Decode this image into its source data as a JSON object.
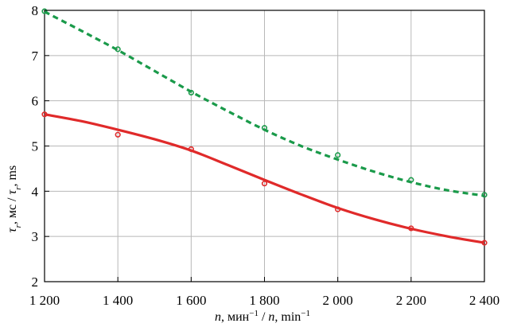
{
  "chart_data": {
    "type": "line",
    "xlabel": {
      "var": "n",
      "unit_ru": "мин",
      "sep": " / ",
      "unit_en": "min",
      "exp": "−1"
    },
    "ylabel": {
      "var": "τ",
      "sub": "r",
      "unit_ru": "мс",
      "sep": " / ",
      "unit_en": "ms"
    },
    "xlim": [
      1200,
      2400
    ],
    "ylim": [
      2,
      8
    ],
    "x_ticks": [
      1200,
      1400,
      1600,
      1800,
      2000,
      2200,
      2400
    ],
    "x_tick_labels": [
      "1 200",
      "1 400",
      "1 600",
      "1 800",
      "2 000",
      "2 200",
      "2 400"
    ],
    "y_ticks": [
      2,
      3,
      4,
      5,
      6,
      7,
      8
    ],
    "y_tick_labels": [
      "2",
      "3",
      "4",
      "5",
      "6",
      "7",
      "8"
    ],
    "grid": true,
    "series": [
      {
        "color": "#1a9a4a",
        "line_style": "dashed",
        "points": {
          "x": [
            1200,
            1400,
            1600,
            1800,
            2000,
            2200,
            2400
          ],
          "y": [
            7.98,
            7.14,
            6.18,
            5.4,
            4.8,
            4.25,
            3.92
          ]
        },
        "fit": {
          "x": [
            1200,
            1300,
            1400,
            1500,
            1600,
            1700,
            1800,
            1900,
            2000,
            2100,
            2200,
            2300,
            2400
          ],
          "y": [
            7.97,
            7.55,
            7.12,
            6.66,
            6.2,
            5.77,
            5.36,
            5.0,
            4.7,
            4.43,
            4.2,
            4.02,
            3.9
          ]
        }
      },
      {
        "color": "#e02a2a",
        "line_style": "solid",
        "points": {
          "x": [
            1200,
            1400,
            1600,
            1800,
            2000,
            2200,
            2400
          ],
          "y": [
            5.7,
            5.25,
            4.93,
            4.17,
            3.6,
            3.18,
            2.86
          ]
        },
        "fit": {
          "x": [
            1200,
            1300,
            1400,
            1500,
            1600,
            1700,
            1800,
            1900,
            2000,
            2100,
            2200,
            2300,
            2400
          ],
          "y": [
            5.7,
            5.55,
            5.36,
            5.15,
            4.9,
            4.58,
            4.25,
            3.93,
            3.63,
            3.38,
            3.17,
            3.0,
            2.86
          ]
        }
      }
    ]
  }
}
